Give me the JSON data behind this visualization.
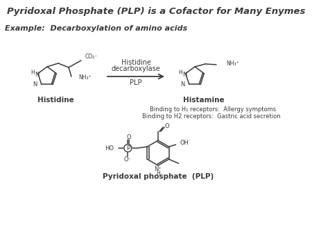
{
  "title": "Pyridoxal Phosphate (PLP) is a Cofactor for Many Enymes",
  "example_label": "Example:  Decarboxylation of amino acids",
  "enzyme_line1": "Histidine",
  "enzyme_line2": "decarboxylase",
  "plp_label": "PLP",
  "histidine_label": "Histidine",
  "histamine_label": "Histamine",
  "binding1": "Binding to H₁ receptors:  Allergy symptoms",
  "binding2": "Binding to H2 receptors:  Gastric acid secretion",
  "plp_structure_label": "Pyridoxal phosphate  (PLP)",
  "bg_color": "#ffffff",
  "text_color": "#3a3a3a",
  "line_color": "#3a3a3a"
}
